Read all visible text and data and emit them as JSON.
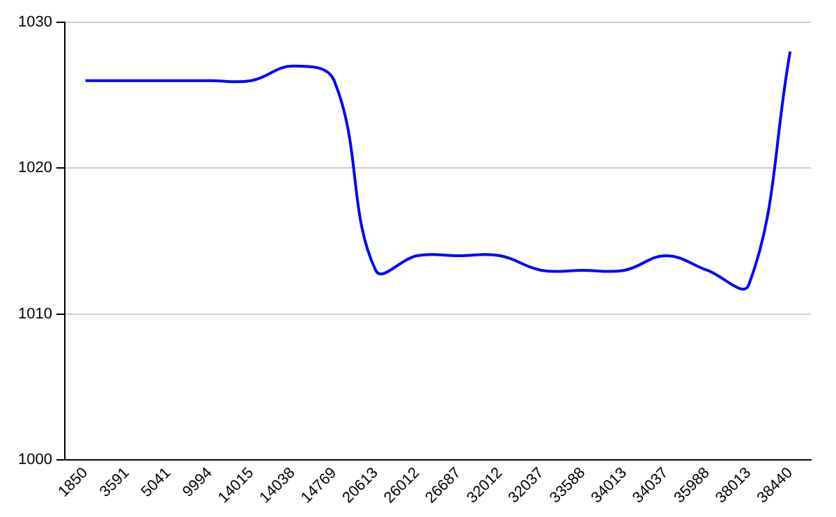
{
  "chart_data": {
    "type": "line",
    "categories": [
      "1850",
      "3591",
      "5041",
      "9994",
      "14015",
      "14038",
      "14769",
      "20613",
      "26012",
      "26687",
      "32012",
      "32037",
      "33588",
      "34013",
      "34037",
      "35988",
      "38013",
      "38440"
    ],
    "series": [
      {
        "color": "#0000ff",
        "values": [
          1026,
          1026,
          1026,
          1026,
          1026,
          1027,
          1026,
          1013,
          1014,
          1014,
          1014,
          1013,
          1013,
          1013,
          1014,
          1013,
          1012,
          1028
        ]
      }
    ],
    "ylim": [
      1000,
      1030
    ],
    "yticks": [
      1000,
      1010,
      1020,
      1030
    ],
    "grid": "y",
    "legend": false,
    "marker": "none",
    "line_style": "solid"
  }
}
